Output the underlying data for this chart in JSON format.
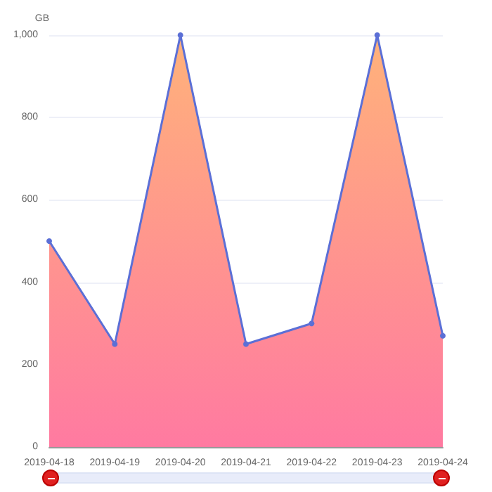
{
  "chart_data": {
    "type": "area",
    "ylabel": "GB",
    "categories": [
      "2019-04-18",
      "2019-04-19",
      "2019-04-20",
      "2019-04-21",
      "2019-04-22",
      "2019-04-23",
      "2019-04-24"
    ],
    "series": [
      {
        "color": "#5b6fd6",
        "values": [
          500,
          250,
          1000,
          250,
          300,
          1000,
          270
        ]
      }
    ],
    "ylim": [
      0,
      1000
    ],
    "yticks": [
      0,
      200,
      400,
      600,
      800,
      {
        "value": 1000,
        "label": "1,000"
      }
    ],
    "grid": "y",
    "marker": "circle",
    "line_style": "solid"
  }
}
